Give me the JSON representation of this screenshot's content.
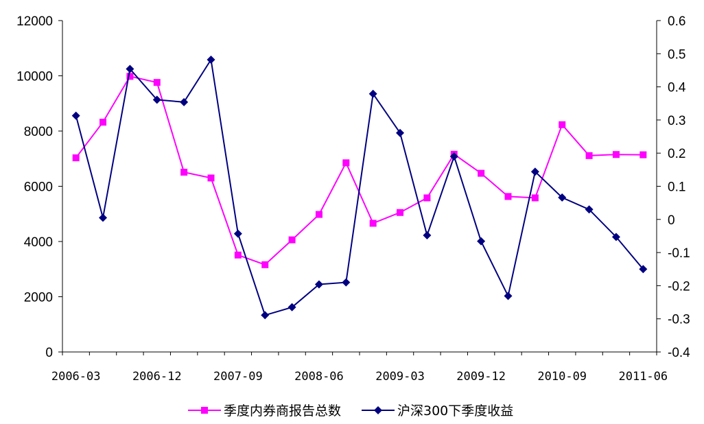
{
  "chart_data": {
    "type": "line",
    "x": [
      "2006-03",
      "2006-06",
      "2006-09",
      "2006-12",
      "2007-03",
      "2007-06",
      "2007-09",
      "2007-12",
      "2008-03",
      "2008-06",
      "2008-09",
      "2008-12",
      "2009-03",
      "2009-06",
      "2009-09",
      "2009-12",
      "2010-03",
      "2010-06",
      "2010-09",
      "2010-12",
      "2011-03",
      "2011-06"
    ],
    "x_tick_labels": [
      "2006-03",
      "2006-12",
      "2007-09",
      "2008-06",
      "2009-03",
      "2009-12",
      "2010-09",
      "2011-06"
    ],
    "y_left": {
      "ylim": [
        0,
        12000
      ],
      "ticks": [
        "0",
        "2000",
        "4000",
        "6000",
        "8000",
        "10000",
        "12000"
      ]
    },
    "y_right": {
      "ylim": [
        -0.4,
        0.6
      ],
      "ticks": [
        "-0.4",
        "-0.3",
        "-0.2",
        "-0.1",
        "0",
        "0.1",
        "0.2",
        "0.3",
        "0.4",
        "0.5",
        "0.6"
      ]
    },
    "series": [
      {
        "name": "季度内券商报告总数",
        "axis": "left",
        "color": "#ff00ff",
        "marker": "square",
        "values": [
          7030,
          8320,
          9980,
          9760,
          6510,
          6300,
          3510,
          3160,
          4060,
          4980,
          6850,
          4660,
          5050,
          5580,
          7160,
          6470,
          5630,
          5580,
          8230,
          7110,
          7150,
          7140
        ]
      },
      {
        "name": "沪深300下季度收益",
        "axis": "right",
        "color": "#000080",
        "marker": "diamond",
        "values": [
          0.313,
          0.005,
          0.454,
          0.361,
          0.354,
          0.482,
          -0.043,
          -0.289,
          -0.265,
          -0.196,
          -0.19,
          0.379,
          0.261,
          -0.048,
          0.19,
          -0.066,
          -0.231,
          0.144,
          0.066,
          0.03,
          -0.053,
          -0.15
        ]
      }
    ],
    "legend": "bottom",
    "grid": false
  }
}
